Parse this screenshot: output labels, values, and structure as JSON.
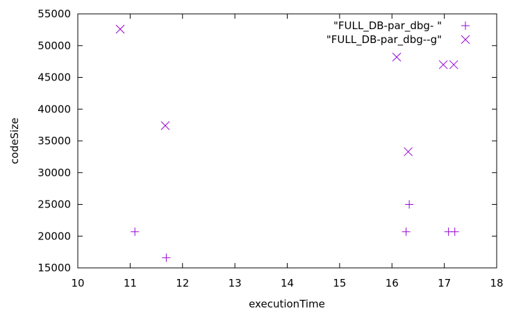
{
  "chart_data": {
    "type": "scatter",
    "xlabel": "executionTime",
    "ylabel": "codeSize",
    "xlim": [
      10,
      18
    ],
    "ylim": [
      15000,
      55000
    ],
    "x_ticks": [
      10,
      11,
      12,
      13,
      14,
      15,
      16,
      17,
      18
    ],
    "y_ticks": [
      15000,
      20000,
      25000,
      30000,
      35000,
      40000,
      45000,
      50000,
      55000
    ],
    "grid": false,
    "legend_position": "top-right",
    "series": [
      {
        "name": "\"FULL_DB-par_dbg- \"",
        "marker": "plus",
        "color": "#9400d3",
        "points": [
          {
            "x": 11.09,
            "y": 20700
          },
          {
            "x": 11.69,
            "y": 16600
          },
          {
            "x": 16.27,
            "y": 20700
          },
          {
            "x": 16.33,
            "y": 25000
          },
          {
            "x": 17.08,
            "y": 20700
          },
          {
            "x": 17.2,
            "y": 20700
          }
        ]
      },
      {
        "name": "\"FULL_DB-par_dbg--g\"",
        "marker": "cross",
        "color": "#9400d3",
        "points": [
          {
            "x": 10.81,
            "y": 52600
          },
          {
            "x": 11.67,
            "y": 37400
          },
          {
            "x": 16.09,
            "y": 48200
          },
          {
            "x": 16.31,
            "y": 33300
          },
          {
            "x": 16.98,
            "y": 47000
          },
          {
            "x": 17.18,
            "y": 47000
          }
        ]
      }
    ]
  }
}
